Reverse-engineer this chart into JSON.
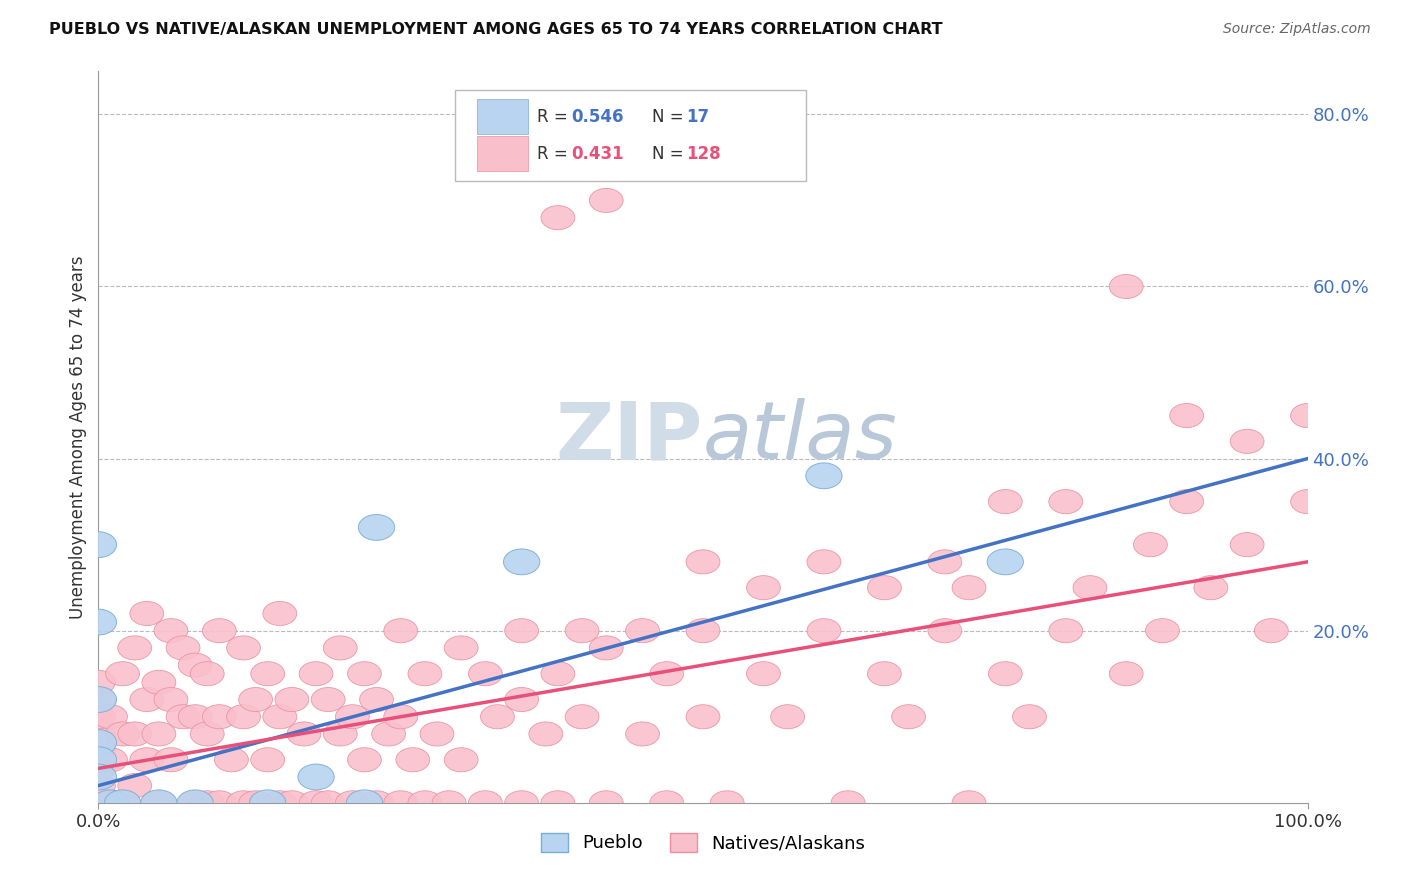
{
  "title": "PUEBLO VS NATIVE/ALASKAN UNEMPLOYMENT AMONG AGES 65 TO 74 YEARS CORRELATION CHART",
  "source": "Source: ZipAtlas.com",
  "ylabel": "Unemployment Among Ages 65 to 74 years",
  "xlim": [
    0.0,
    1.0
  ],
  "ylim": [
    0.0,
    0.85
  ],
  "xtick_labels": [
    "0.0%",
    "100.0%"
  ],
  "ytick_labels": [
    "20.0%",
    "40.0%",
    "60.0%",
    "80.0%"
  ],
  "ytick_values": [
    0.2,
    0.4,
    0.6,
    0.8
  ],
  "grid_color": "#bbbbbb",
  "background_color": "#ffffff",
  "pueblo_color": "#b8d4f0",
  "pueblo_edge_color": "#7aadd4",
  "native_color": "#f9c0cc",
  "native_edge_color": "#e8909f",
  "pueblo_line_color": "#4472c4",
  "native_line_color": "#e8507a",
  "watermark_color": "#d0dce8",
  "legend_R_pueblo": "0.546",
  "legend_N_pueblo": "17",
  "legend_R_native": "0.431",
  "legend_N_native": "128",
  "pueblo_line_intercept": 0.02,
  "pueblo_line_slope": 0.38,
  "native_line_intercept": 0.04,
  "native_line_slope": 0.24,
  "pueblo_data": [
    [
      0.0,
      0.3
    ],
    [
      0.0,
      0.21
    ],
    [
      0.0,
      0.12
    ],
    [
      0.0,
      0.07
    ],
    [
      0.0,
      0.05
    ],
    [
      0.0,
      0.03
    ],
    [
      0.01,
      0.0
    ],
    [
      0.02,
      0.0
    ],
    [
      0.05,
      0.0
    ],
    [
      0.08,
      0.0
    ],
    [
      0.14,
      0.0
    ],
    [
      0.18,
      0.03
    ],
    [
      0.22,
      0.0
    ],
    [
      0.23,
      0.32
    ],
    [
      0.35,
      0.28
    ],
    [
      0.6,
      0.38
    ],
    [
      0.75,
      0.28
    ]
  ],
  "native_data": [
    [
      0.0,
      0.0
    ],
    [
      0.0,
      0.02
    ],
    [
      0.0,
      0.04
    ],
    [
      0.0,
      0.06
    ],
    [
      0.0,
      0.08
    ],
    [
      0.0,
      0.1
    ],
    [
      0.0,
      0.12
    ],
    [
      0.0,
      0.14
    ],
    [
      0.01,
      0.0
    ],
    [
      0.01,
      0.05
    ],
    [
      0.01,
      0.1
    ],
    [
      0.02,
      0.0
    ],
    [
      0.02,
      0.08
    ],
    [
      0.02,
      0.15
    ],
    [
      0.03,
      0.02
    ],
    [
      0.03,
      0.08
    ],
    [
      0.03,
      0.18
    ],
    [
      0.04,
      0.05
    ],
    [
      0.04,
      0.12
    ],
    [
      0.04,
      0.22
    ],
    [
      0.05,
      0.0
    ],
    [
      0.05,
      0.08
    ],
    [
      0.05,
      0.14
    ],
    [
      0.06,
      0.05
    ],
    [
      0.06,
      0.12
    ],
    [
      0.06,
      0.2
    ],
    [
      0.07,
      0.1
    ],
    [
      0.07,
      0.18
    ],
    [
      0.08,
      0.0
    ],
    [
      0.08,
      0.1
    ],
    [
      0.08,
      0.16
    ],
    [
      0.09,
      0.0
    ],
    [
      0.09,
      0.08
    ],
    [
      0.09,
      0.15
    ],
    [
      0.1,
      0.0
    ],
    [
      0.1,
      0.1
    ],
    [
      0.1,
      0.2
    ],
    [
      0.11,
      0.05
    ],
    [
      0.12,
      0.0
    ],
    [
      0.12,
      0.1
    ],
    [
      0.12,
      0.18
    ],
    [
      0.13,
      0.0
    ],
    [
      0.13,
      0.12
    ],
    [
      0.14,
      0.05
    ],
    [
      0.14,
      0.15
    ],
    [
      0.15,
      0.0
    ],
    [
      0.15,
      0.1
    ],
    [
      0.15,
      0.22
    ],
    [
      0.16,
      0.0
    ],
    [
      0.16,
      0.12
    ],
    [
      0.17,
      0.08
    ],
    [
      0.18,
      0.0
    ],
    [
      0.18,
      0.15
    ],
    [
      0.19,
      0.0
    ],
    [
      0.19,
      0.12
    ],
    [
      0.2,
      0.08
    ],
    [
      0.2,
      0.18
    ],
    [
      0.21,
      0.0
    ],
    [
      0.21,
      0.1
    ],
    [
      0.22,
      0.05
    ],
    [
      0.22,
      0.15
    ],
    [
      0.23,
      0.0
    ],
    [
      0.23,
      0.12
    ],
    [
      0.24,
      0.08
    ],
    [
      0.25,
      0.0
    ],
    [
      0.25,
      0.1
    ],
    [
      0.25,
      0.2
    ],
    [
      0.26,
      0.05
    ],
    [
      0.27,
      0.0
    ],
    [
      0.27,
      0.15
    ],
    [
      0.28,
      0.08
    ],
    [
      0.29,
      0.0
    ],
    [
      0.3,
      0.05
    ],
    [
      0.3,
      0.18
    ],
    [
      0.32,
      0.0
    ],
    [
      0.32,
      0.15
    ],
    [
      0.33,
      0.1
    ],
    [
      0.35,
      0.0
    ],
    [
      0.35,
      0.12
    ],
    [
      0.35,
      0.2
    ],
    [
      0.37,
      0.08
    ],
    [
      0.38,
      0.0
    ],
    [
      0.38,
      0.15
    ],
    [
      0.4,
      0.1
    ],
    [
      0.4,
      0.2
    ],
    [
      0.42,
      0.0
    ],
    [
      0.42,
      0.18
    ],
    [
      0.45,
      0.08
    ],
    [
      0.45,
      0.2
    ],
    [
      0.47,
      0.0
    ],
    [
      0.47,
      0.15
    ],
    [
      0.5,
      0.1
    ],
    [
      0.5,
      0.2
    ],
    [
      0.5,
      0.28
    ],
    [
      0.52,
      0.0
    ],
    [
      0.55,
      0.15
    ],
    [
      0.55,
      0.25
    ],
    [
      0.57,
      0.1
    ],
    [
      0.6,
      0.2
    ],
    [
      0.6,
      0.28
    ],
    [
      0.62,
      0.0
    ],
    [
      0.65,
      0.15
    ],
    [
      0.65,
      0.25
    ],
    [
      0.67,
      0.1
    ],
    [
      0.7,
      0.2
    ],
    [
      0.7,
      0.28
    ],
    [
      0.72,
      0.0
    ],
    [
      0.72,
      0.25
    ],
    [
      0.75,
      0.15
    ],
    [
      0.75,
      0.35
    ],
    [
      0.77,
      0.1
    ],
    [
      0.8,
      0.2
    ],
    [
      0.8,
      0.35
    ],
    [
      0.82,
      0.25
    ],
    [
      0.85,
      0.15
    ],
    [
      0.85,
      0.6
    ],
    [
      0.87,
      0.3
    ],
    [
      0.88,
      0.2
    ],
    [
      0.9,
      0.35
    ],
    [
      0.9,
      0.45
    ],
    [
      0.92,
      0.25
    ],
    [
      0.95,
      0.3
    ],
    [
      0.95,
      0.42
    ],
    [
      0.97,
      0.2
    ],
    [
      1.0,
      0.35
    ],
    [
      1.0,
      0.45
    ],
    [
      0.38,
      0.68
    ],
    [
      0.42,
      0.7
    ]
  ]
}
